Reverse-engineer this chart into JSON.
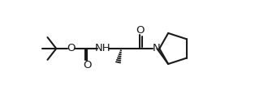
{
  "bg_color": "#ffffff",
  "line_color": "#1a1a1a",
  "line_width": 1.5,
  "font_size": 9.5,
  "fig_width": 3.14,
  "fig_height": 1.21,
  "dpi": 100,
  "xlim": [
    0,
    314
  ],
  "ylim": [
    0,
    121
  ]
}
